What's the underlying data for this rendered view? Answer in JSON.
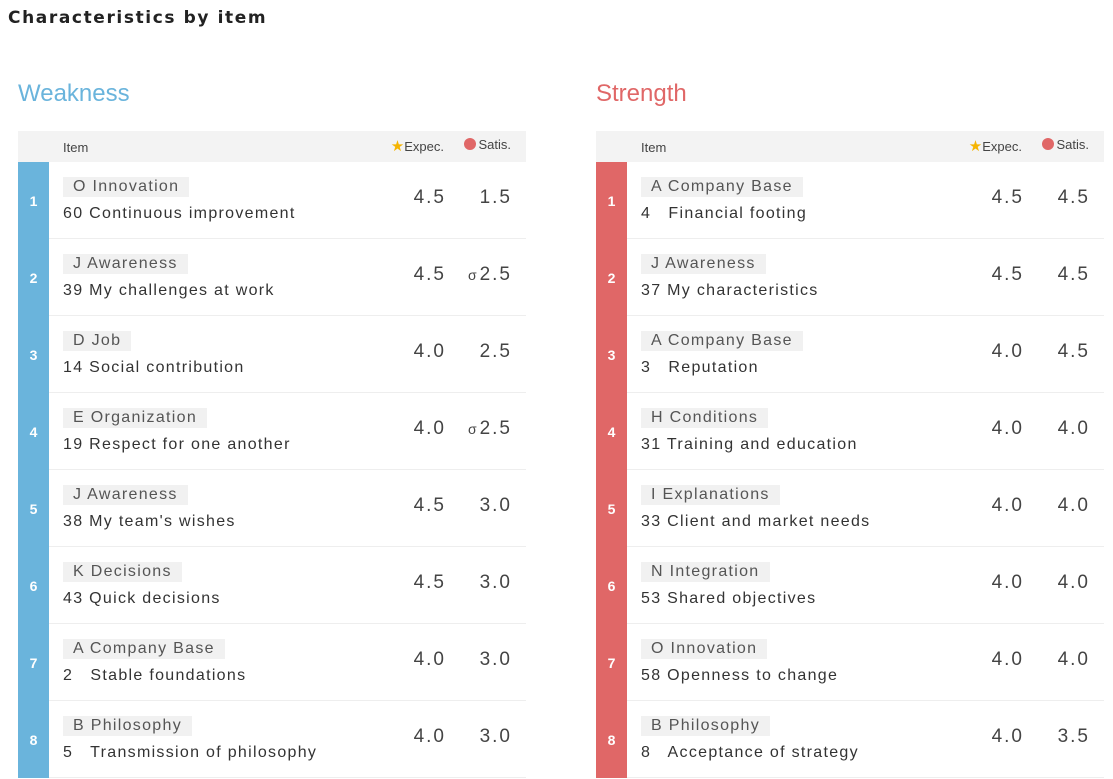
{
  "page_title": "Characteristics by item",
  "colors": {
    "weakness": "#6ab4dc",
    "strength": "#e06767",
    "star": "#f5b400"
  },
  "headers": {
    "item": "Item",
    "expec": "Expec.",
    "satis": "Satis."
  },
  "icons": {
    "expec": "star-icon",
    "satis": "circle-icon",
    "variance": "sigma-icon"
  },
  "weakness": {
    "title": "Weakness",
    "rows": [
      {
        "rank": "1",
        "category": "O Innovation",
        "item": "60 Continuous improvement",
        "expec": "4.5",
        "satis": "1.5",
        "sigma": ""
      },
      {
        "rank": "2",
        "category": "J Awareness",
        "item": "39 My challenges at work",
        "expec": "4.5",
        "satis": "2.5",
        "sigma": "σ"
      },
      {
        "rank": "3",
        "category": "D Job",
        "item": "14 Social contribution",
        "expec": "4.0",
        "satis": "2.5",
        "sigma": ""
      },
      {
        "rank": "4",
        "category": "E Organization",
        "item": "19 Respect for one another",
        "expec": "4.0",
        "satis": "2.5",
        "sigma": "σ"
      },
      {
        "rank": "5",
        "category": "J Awareness",
        "item": "38 My team's wishes",
        "expec": "4.5",
        "satis": "3.0",
        "sigma": ""
      },
      {
        "rank": "6",
        "category": "K Decisions",
        "item": "43 Quick decisions",
        "expec": "4.5",
        "satis": "3.0",
        "sigma": ""
      },
      {
        "rank": "7",
        "category": "A Company Base",
        "item": "2   Stable foundations",
        "expec": "4.0",
        "satis": "3.0",
        "sigma": ""
      },
      {
        "rank": "8",
        "category": "B Philosophy",
        "item": "5   Transmission of philosophy",
        "expec": "4.0",
        "satis": "3.0",
        "sigma": ""
      }
    ]
  },
  "strength": {
    "title": "Strength",
    "rows": [
      {
        "rank": "1",
        "category": "A Company Base",
        "item": "4   Financial footing",
        "expec": "4.5",
        "satis": "4.5",
        "sigma": ""
      },
      {
        "rank": "2",
        "category": "J Awareness",
        "item": "37 My characteristics",
        "expec": "4.5",
        "satis": "4.5",
        "sigma": ""
      },
      {
        "rank": "3",
        "category": "A Company Base",
        "item": "3   Reputation",
        "expec": "4.0",
        "satis": "4.5",
        "sigma": ""
      },
      {
        "rank": "4",
        "category": "H Conditions",
        "item": "31 Training and education",
        "expec": "4.0",
        "satis": "4.0",
        "sigma": ""
      },
      {
        "rank": "5",
        "category": "I Explanations",
        "item": "33 Client and market needs",
        "expec": "4.0",
        "satis": "4.0",
        "sigma": ""
      },
      {
        "rank": "6",
        "category": "N Integration",
        "item": "53 Shared objectives",
        "expec": "4.0",
        "satis": "4.0",
        "sigma": ""
      },
      {
        "rank": "7",
        "category": "O Innovation",
        "item": "58 Openness to change",
        "expec": "4.0",
        "satis": "4.0",
        "sigma": ""
      },
      {
        "rank": "8",
        "category": "B Philosophy",
        "item": "8   Acceptance of strategy",
        "expec": "4.0",
        "satis": "3.5",
        "sigma": ""
      }
    ]
  }
}
